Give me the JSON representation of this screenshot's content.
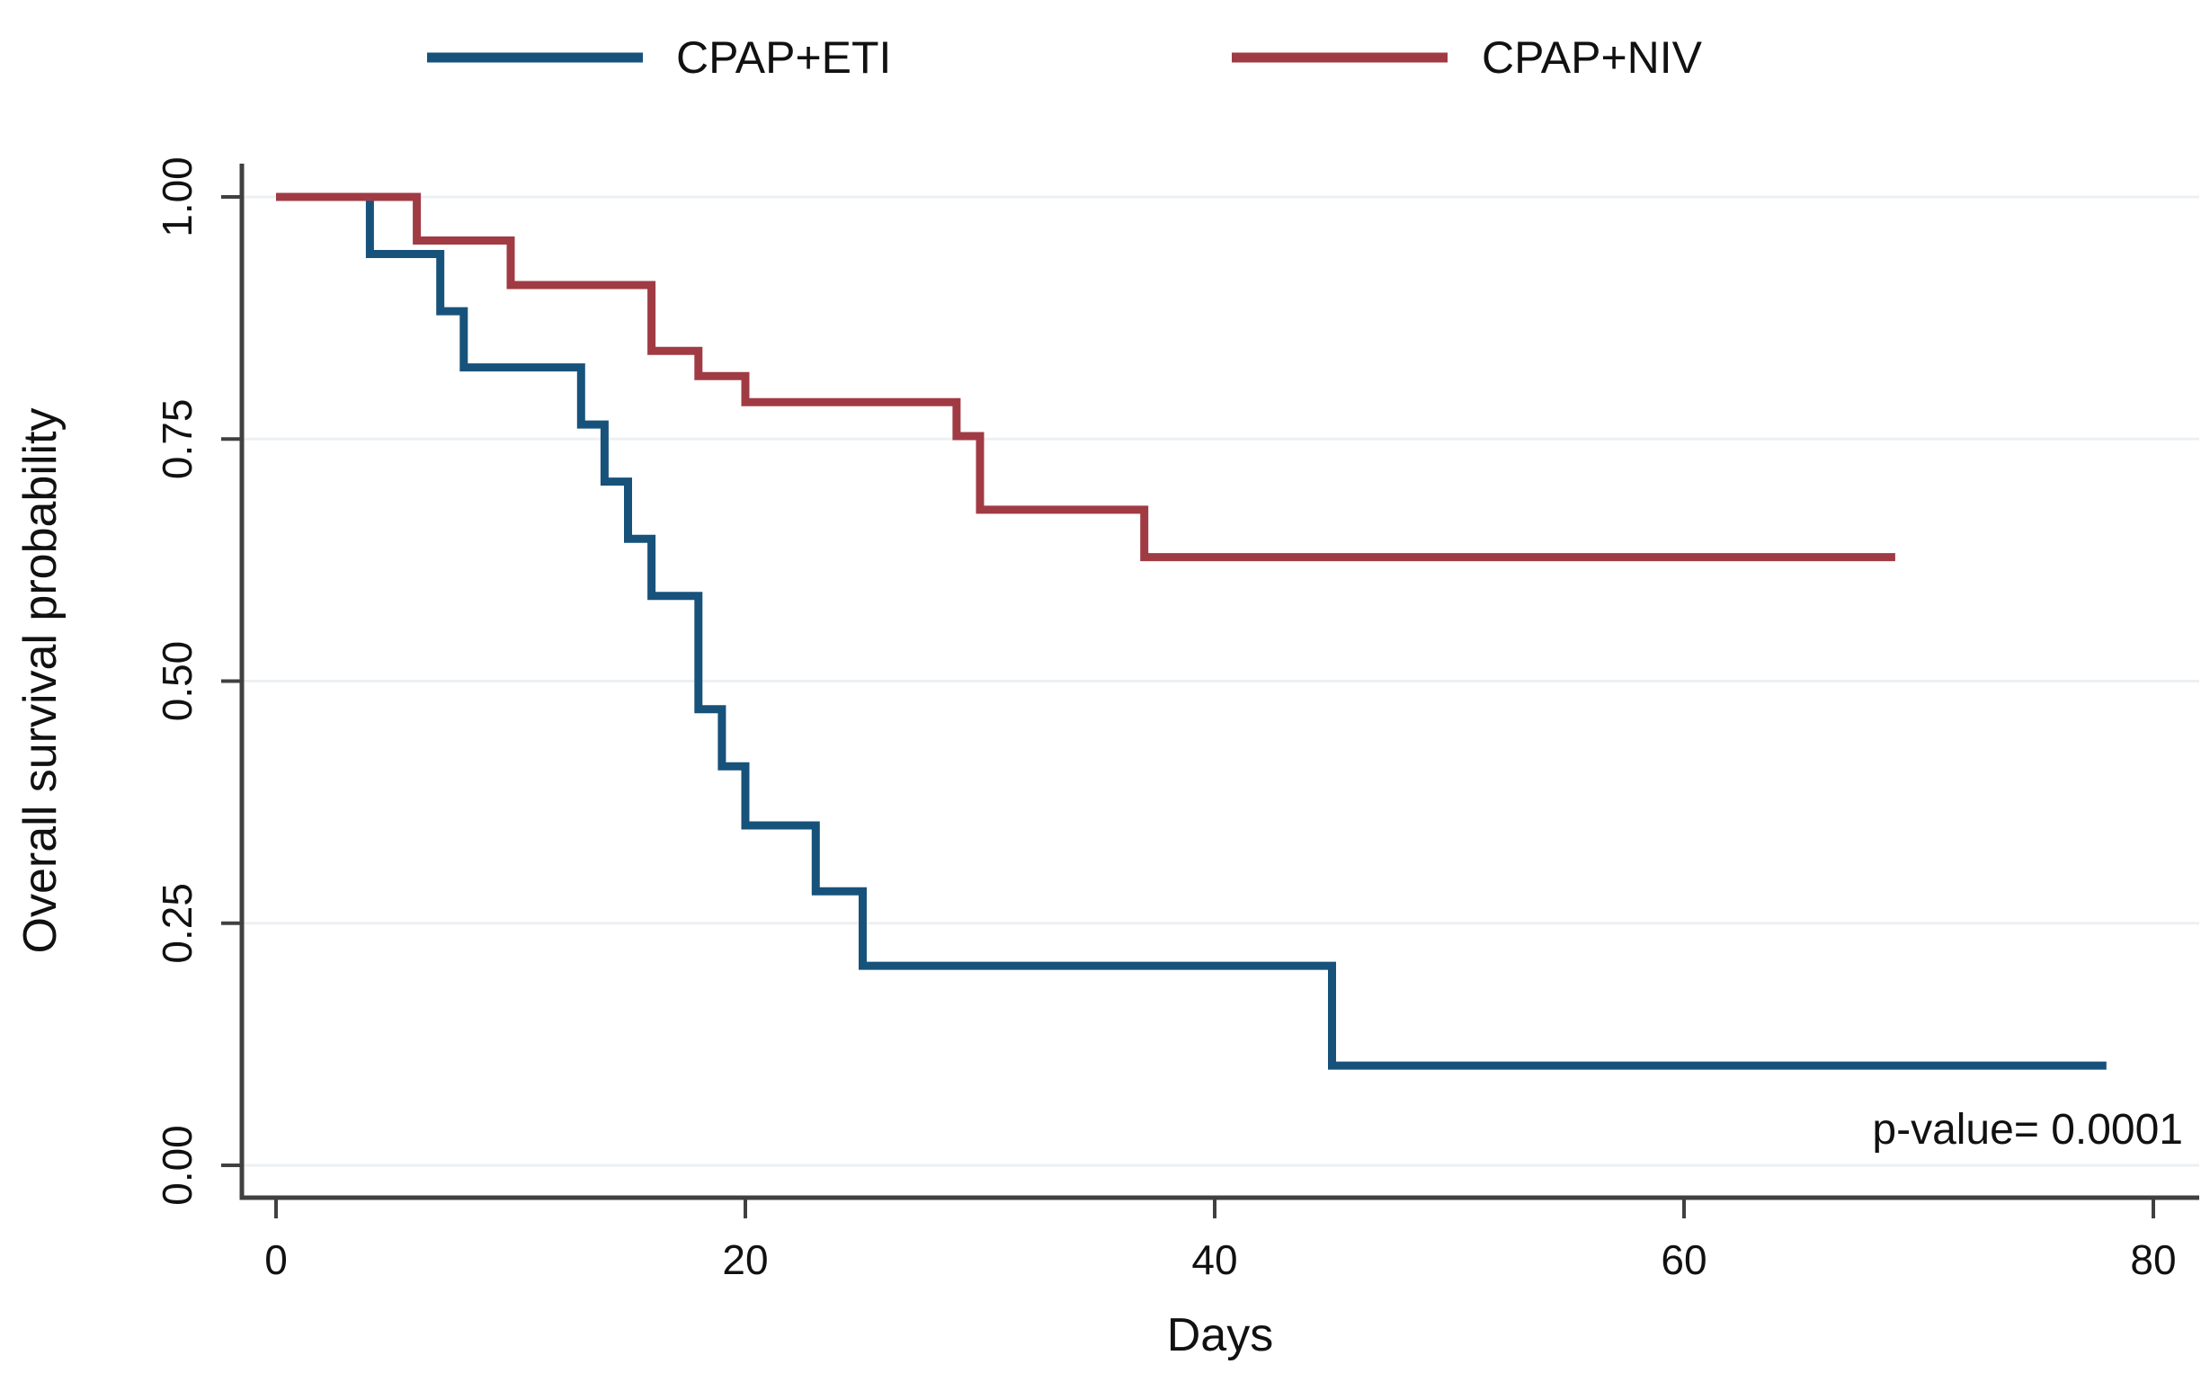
{
  "chart_data": {
    "type": "line",
    "subtype": "kaplan-meier-step",
    "title": "",
    "xlabel": "Days",
    "ylabel": "Overall survival probability",
    "xlim": [
      0,
      80
    ],
    "ylim": [
      0,
      1
    ],
    "grid": true,
    "legend_position": "top",
    "x_ticks": [
      {
        "label": "0",
        "value": 0
      },
      {
        "label": "20",
        "value": 20
      },
      {
        "label": "40",
        "value": 40
      },
      {
        "label": "60",
        "value": 60
      },
      {
        "label": "80",
        "value": 80
      }
    ],
    "y_ticks": [
      {
        "label": "0.00",
        "value": 0
      },
      {
        "label": "0.25",
        "value": 0.25
      },
      {
        "label": "0.50",
        "value": 0.5
      },
      {
        "label": "0.75",
        "value": 0.75
      },
      {
        "label": "1.00",
        "value": 1
      }
    ],
    "series": [
      {
        "name": "CPAP+ETI",
        "color": "#17527b",
        "end_day": 78,
        "steps": [
          [
            0,
            1.0
          ],
          [
            4,
            0.941
          ],
          [
            7,
            0.882
          ],
          [
            8,
            0.824
          ],
          [
            13,
            0.765
          ],
          [
            14,
            0.706
          ],
          [
            15,
            0.647
          ],
          [
            16,
            0.588
          ],
          [
            18,
            0.471
          ],
          [
            19,
            0.412
          ],
          [
            20,
            0.351
          ],
          [
            23,
            0.283
          ],
          [
            25,
            0.206
          ],
          [
            45,
            0.103
          ]
        ]
      },
      {
        "name": "CPAP+NIV",
        "color": "#a03b44",
        "end_day": 69,
        "steps": [
          [
            0,
            1.0
          ],
          [
            6,
            0.955
          ],
          [
            10,
            0.909
          ],
          [
            16,
            0.841
          ],
          [
            18,
            0.815
          ],
          [
            20,
            0.788
          ],
          [
            29,
            0.753
          ],
          [
            30,
            0.677
          ],
          [
            37,
            0.628
          ]
        ]
      }
    ],
    "annotation": {
      "text": "p-value= 0.0001"
    }
  }
}
